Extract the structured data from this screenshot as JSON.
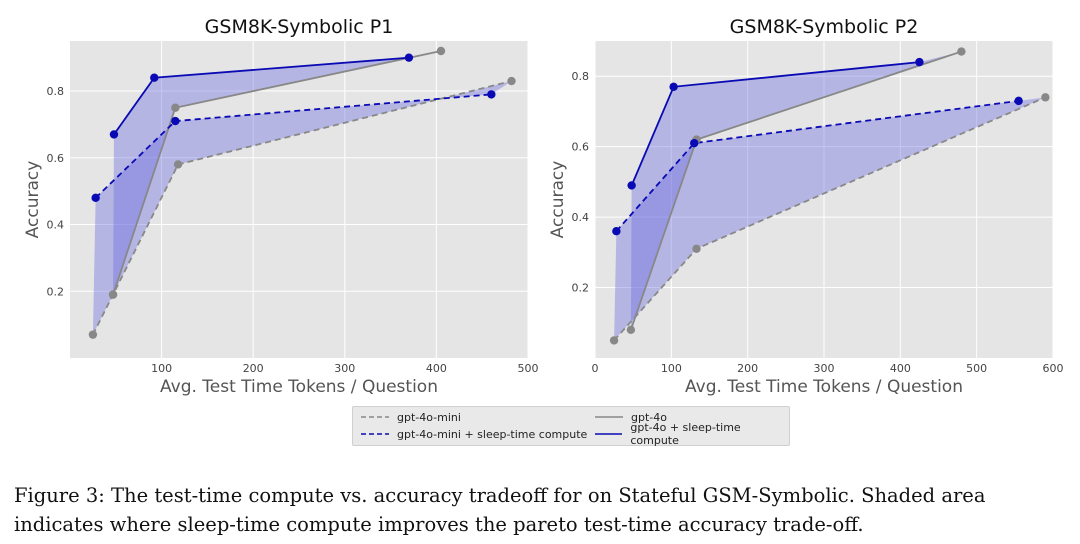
{
  "legend": [
    {
      "label": "gpt-4o-mini",
      "color": "#888888",
      "dash": true
    },
    {
      "label": "gpt-4o",
      "color": "#888888",
      "dash": false
    },
    {
      "label": "gpt-4o-mini + sleep-time compute",
      "color": "#0a0ab4",
      "dash": true
    },
    {
      "label": "gpt-4o + sleep-time compute",
      "color": "#0a0ab4",
      "dash": false
    }
  ],
  "caption": "Figure 3: The test-time compute vs. accuracy tradeoff for on Stateful GSM-Symbolic. Shaded area indicates where sleep-time compute improves the pareto test-time accuracy trade-off.",
  "colors": {
    "baseline": "#888888",
    "sleep": "#0a0ab4",
    "shade": "#6e6ee0",
    "plot_bg": "#e5e5e5",
    "grid": "#ffffff"
  },
  "chart_data": [
    {
      "type": "line",
      "title": "GSM8K-Symbolic P1",
      "xlabel": "Avg. Test Time Tokens / Question",
      "ylabel": "Accuracy",
      "xlim": [
        0,
        500
      ],
      "ylim": [
        0.0,
        0.95
      ],
      "xticks": [
        100,
        200,
        300,
        400,
        500
      ],
      "yticks": [
        0.2,
        0.4,
        0.6,
        0.8
      ],
      "series": [
        {
          "name": "gpt-4o-mini",
          "style": "dashed",
          "color": "#888888",
          "x": [
            25,
            47,
            118,
            482
          ],
          "y": [
            0.07,
            0.19,
            0.58,
            0.83
          ]
        },
        {
          "name": "gpt-4o",
          "style": "solid",
          "color": "#888888",
          "x": [
            47,
            115,
            405
          ],
          "y": [
            0.19,
            0.75,
            0.92
          ]
        },
        {
          "name": "gpt-4o-mini + sleep-time compute",
          "style": "dashed",
          "color": "#0a0ab4",
          "x": [
            28,
            115,
            460
          ],
          "y": [
            0.48,
            0.71,
            0.79
          ]
        },
        {
          "name": "gpt-4o + sleep-time compute",
          "style": "solid",
          "color": "#0a0ab4",
          "x": [
            48,
            92,
            370
          ],
          "y": [
            0.67,
            0.84,
            0.9
          ]
        }
      ]
    },
    {
      "type": "line",
      "title": "GSM8K-Symbolic P2",
      "xlabel": "Avg. Test Time Tokens / Question",
      "ylabel": "Accuracy",
      "xlim": [
        0,
        600
      ],
      "ylim": [
        0.0,
        0.9
      ],
      "xticks": [
        0,
        100,
        200,
        300,
        400,
        500,
        600
      ],
      "yticks": [
        0.2,
        0.4,
        0.6,
        0.8
      ],
      "series": [
        {
          "name": "gpt-4o-mini",
          "style": "dashed",
          "color": "#888888",
          "x": [
            25,
            133,
            590
          ],
          "y": [
            0.05,
            0.31,
            0.74
          ]
        },
        {
          "name": "gpt-4o",
          "style": "solid",
          "color": "#888888",
          "x": [
            47,
            133,
            480
          ],
          "y": [
            0.08,
            0.62,
            0.87
          ]
        },
        {
          "name": "gpt-4o-mini + sleep-time compute",
          "style": "dashed",
          "color": "#0a0ab4",
          "x": [
            28,
            130,
            555
          ],
          "y": [
            0.36,
            0.61,
            0.73
          ]
        },
        {
          "name": "gpt-4o + sleep-time compute",
          "style": "solid",
          "color": "#0a0ab4",
          "x": [
            48,
            103,
            425
          ],
          "y": [
            0.49,
            0.77,
            0.84
          ]
        }
      ]
    }
  ]
}
